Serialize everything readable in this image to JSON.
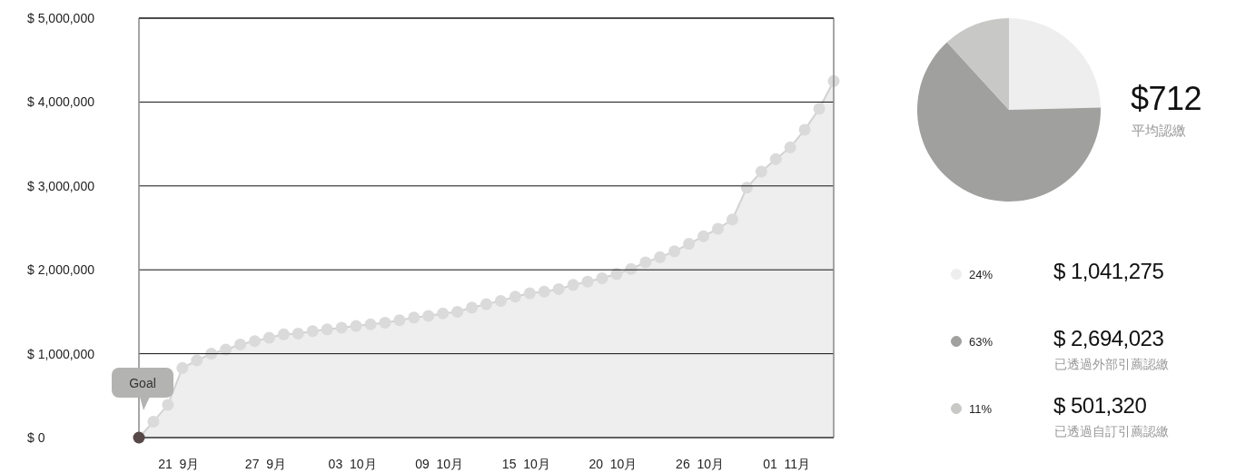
{
  "chart_data": [
    {
      "type": "area",
      "marker": "circle",
      "grid": "y",
      "categories": [
        null,
        null,
        null,
        "21  9月",
        null,
        null,
        null,
        null,
        null,
        "27  9月",
        null,
        null,
        null,
        null,
        null,
        "03  10月",
        null,
        null,
        null,
        null,
        null,
        "09  10月",
        null,
        null,
        null,
        null,
        null,
        "15  10月",
        null,
        null,
        null,
        null,
        null,
        "20  10月",
        null,
        null,
        null,
        null,
        null,
        "26  10月",
        null,
        null,
        null,
        null,
        null,
        "01  11月",
        null,
        null,
        null
      ],
      "series": [
        {
          "color": "#d9dad9",
          "values": [
            0,
            190000,
            390000,
            830000,
            920000,
            1000000,
            1050000,
            1110000,
            1150000,
            1190000,
            1230000,
            1240000,
            1270000,
            1290000,
            1310000,
            1330000,
            1350000,
            1370000,
            1400000,
            1430000,
            1450000,
            1480000,
            1500000,
            1550000,
            1590000,
            1630000,
            1680000,
            1720000,
            1740000,
            1770000,
            1820000,
            1860000,
            1900000,
            1950000,
            2010000,
            2090000,
            2150000,
            2220000,
            2310000,
            2400000,
            2490000,
            2600000,
            2980000,
            3170000,
            3320000,
            3460000,
            3670000,
            3920000,
            4250000
          ]
        }
      ],
      "ylim": [
        0,
        5000000
      ],
      "yticks": [
        {
          "value": 0,
          "label": "$ 0"
        },
        {
          "value": 1000000,
          "label": "$ 1,000,000"
        },
        {
          "value": 2000000,
          "label": "$ 2,000,000"
        },
        {
          "value": 3000000,
          "label": "$ 3,000,000"
        },
        {
          "value": 4000000,
          "label": "$ 4,000,000"
        },
        {
          "value": 5000000,
          "label": "$ 5,000,000"
        }
      ],
      "annotations": [
        "Goal"
      ]
    },
    {
      "type": "pie",
      "categories": [
        null,
        null,
        null
      ],
      "values": [
        24.6,
        63.6,
        11.8
      ],
      "colors": [
        "#eeeeee",
        "#a0a09f",
        "#c8c8c7"
      ],
      "annotations": [
        "$712",
        "平均認繳",
        "24%",
        "$ 1,041,275",
        "63%",
        "$ 2,694,023",
        "已透過外部引薦認繳",
        "11%",
        "$ 501,320",
        "已透過自訂引薦認繳"
      ]
    }
  ]
}
